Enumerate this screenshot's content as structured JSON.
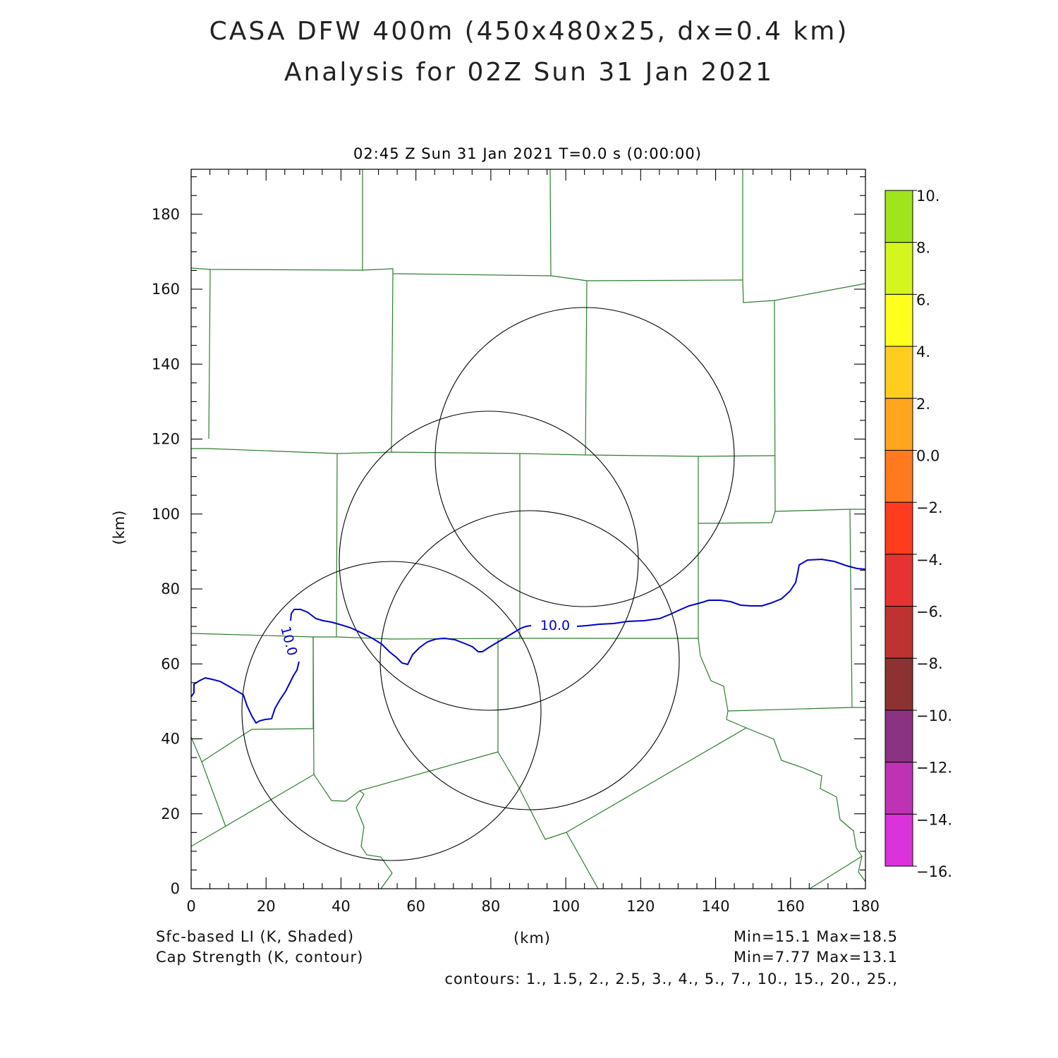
{
  "title_line1": "CASA DFW 400m (450x480x25, dx=0.4 km)",
  "title_line2": "Analysis for 02Z Sun 31 Jan 2021",
  "subtitle": "02:45 Z Sun 31 Jan 2021    T=0.0 s (0:00:00)",
  "axes": {
    "xlabel": "(km)",
    "ylabel": "(km)",
    "x_ticks": [
      "0",
      "20",
      "40",
      "60",
      "80",
      "100",
      "120",
      "140",
      "160",
      "180"
    ],
    "y_ticks": [
      "0",
      "20",
      "40",
      "60",
      "80",
      "100",
      "120",
      "140",
      "160",
      "180"
    ],
    "xlim": [
      0,
      180
    ],
    "ylim": [
      0,
      192
    ]
  },
  "colorbar": {
    "labels": [
      "10.",
      "8.",
      "6.",
      "4.",
      "2.",
      "0.0",
      "−2.",
      "−4.",
      "−6.",
      "−8.",
      "−10.",
      "−12.",
      "−14.",
      "−16."
    ],
    "colors": [
      "#a0e41c",
      "#d4f51e",
      "#ffff1e",
      "#ffcd1e",
      "#ffa51e",
      "#ff7a1e",
      "#ff3c1e",
      "#e63232",
      "#be3232",
      "#8c3232",
      "#8c3282",
      "#be32b4",
      "#dc32dc"
    ]
  },
  "footer": {
    "field1_label": "Sfc-based LI (K, Shaded)",
    "field2_label": "Cap Strength (K, contour)",
    "xunit": "(km)",
    "field1_range": "Min=15.1 Max=18.5",
    "field2_range": "Min=7.77 Max=13.1",
    "contours": "contours: 1., 1.5, 2., 2.5, 3., 4., 5., 7., 10., 15., 20., 25.,"
  },
  "contour_labels": [
    "10.0",
    "10.0"
  ],
  "colors": {
    "boundary": "#2e7d2e",
    "contour": "#0000cc",
    "radar_ring": "#000000"
  }
}
